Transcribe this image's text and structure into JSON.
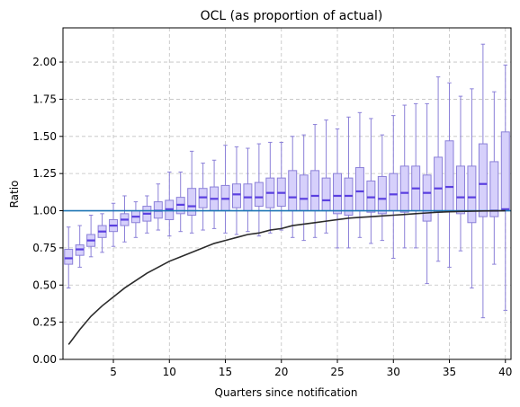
{
  "chart_data": {
    "type": "box",
    "title": "OCL (as proportion of actual)",
    "xlabel": "Quarters since notification",
    "ylabel": "Ratio",
    "xlim": [
      0.5,
      40.5
    ],
    "ylim": [
      0.0,
      2.23
    ],
    "xticks": [
      5,
      10,
      15,
      20,
      25,
      30,
      35,
      40
    ],
    "xtick_labels": [
      "5",
      "10",
      "15",
      "20",
      "25",
      "30",
      "35",
      "40"
    ],
    "yticks": [
      0.0,
      0.25,
      0.5,
      0.75,
      1.0,
      1.25,
      1.5,
      1.75,
      2.0
    ],
    "ytick_labels": [
      "0.00",
      "0.25",
      "0.50",
      "0.75",
      "1.00",
      "1.25",
      "1.50",
      "1.75",
      "2.00"
    ],
    "grid": true,
    "colors": {
      "box_fill": "#d6d0fb",
      "box_edge": "#8b80d8",
      "median": "#5a3fe0",
      "whisker": "#8b80d8",
      "reference_line": "#1f77b4",
      "curve": "#2b2b2b",
      "grid": "#c0c0c0"
    },
    "reference_line": {
      "y": 1.0
    },
    "boxes": [
      {
        "x": 1,
        "whislo": 0.48,
        "q1": 0.64,
        "med": 0.68,
        "q3": 0.74,
        "whishi": 0.89
      },
      {
        "x": 2,
        "whislo": 0.62,
        "q1": 0.7,
        "med": 0.74,
        "q3": 0.77,
        "whishi": 0.9
      },
      {
        "x": 3,
        "whislo": 0.69,
        "q1": 0.76,
        "med": 0.8,
        "q3": 0.84,
        "whishi": 0.97
      },
      {
        "x": 4,
        "whislo": 0.72,
        "q1": 0.82,
        "med": 0.86,
        "q3": 0.9,
        "whishi": 0.98
      },
      {
        "x": 5,
        "whislo": 0.76,
        "q1": 0.86,
        "med": 0.9,
        "q3": 0.94,
        "whishi": 1.05
      },
      {
        "x": 6,
        "whislo": 0.79,
        "q1": 0.9,
        "med": 0.94,
        "q3": 0.98,
        "whishi": 1.1
      },
      {
        "x": 7,
        "whislo": 0.82,
        "q1": 0.92,
        "med": 0.96,
        "q3": 1.0,
        "whishi": 1.06
      },
      {
        "x": 8,
        "whislo": 0.85,
        "q1": 0.93,
        "med": 0.98,
        "q3": 1.03,
        "whishi": 1.1
      },
      {
        "x": 9,
        "whislo": 0.87,
        "q1": 0.95,
        "med": 1.0,
        "q3": 1.06,
        "whishi": 1.18
      },
      {
        "x": 10,
        "whislo": 0.83,
        "q1": 0.94,
        "med": 1.01,
        "q3": 1.07,
        "whishi": 1.26
      },
      {
        "x": 11,
        "whislo": 0.86,
        "q1": 0.98,
        "med": 1.04,
        "q3": 1.09,
        "whishi": 1.26
      },
      {
        "x": 12,
        "whislo": 0.85,
        "q1": 0.97,
        "med": 1.03,
        "q3": 1.15,
        "whishi": 1.4
      },
      {
        "x": 13,
        "whislo": 0.87,
        "q1": 1.02,
        "med": 1.09,
        "q3": 1.15,
        "whishi": 1.32
      },
      {
        "x": 14,
        "whislo": 0.88,
        "q1": 1.0,
        "med": 1.08,
        "q3": 1.16,
        "whishi": 1.34
      },
      {
        "x": 15,
        "whislo": 0.85,
        "q1": 1.0,
        "med": 1.08,
        "q3": 1.17,
        "whishi": 1.44
      },
      {
        "x": 16,
        "whislo": 0.84,
        "q1": 1.02,
        "med": 1.11,
        "q3": 1.18,
        "whishi": 1.43
      },
      {
        "x": 17,
        "whislo": 0.86,
        "q1": 1.0,
        "med": 1.09,
        "q3": 1.18,
        "whishi": 1.42
      },
      {
        "x": 18,
        "whislo": 0.83,
        "q1": 1.03,
        "med": 1.09,
        "q3": 1.19,
        "whishi": 1.45
      },
      {
        "x": 19,
        "whislo": 0.85,
        "q1": 1.02,
        "med": 1.12,
        "q3": 1.22,
        "whishi": 1.46
      },
      {
        "x": 20,
        "whislo": 0.87,
        "q1": 1.03,
        "med": 1.12,
        "q3": 1.22,
        "whishi": 1.46
      },
      {
        "x": 21,
        "whislo": 0.82,
        "q1": 1.0,
        "med": 1.09,
        "q3": 1.27,
        "whishi": 1.5
      },
      {
        "x": 22,
        "whislo": 0.8,
        "q1": 1.0,
        "med": 1.08,
        "q3": 1.24,
        "whishi": 1.51
      },
      {
        "x": 23,
        "whislo": 0.82,
        "q1": 1.0,
        "med": 1.1,
        "q3": 1.27,
        "whishi": 1.58
      },
      {
        "x": 24,
        "whislo": 0.85,
        "q1": 1.0,
        "med": 1.07,
        "q3": 1.22,
        "whishi": 1.61
      },
      {
        "x": 25,
        "whislo": 0.75,
        "q1": 0.98,
        "med": 1.1,
        "q3": 1.25,
        "whishi": 1.55
      },
      {
        "x": 26,
        "whislo": 0.75,
        "q1": 0.97,
        "med": 1.1,
        "q3": 1.22,
        "whishi": 1.63
      },
      {
        "x": 27,
        "whislo": 0.82,
        "q1": 1.0,
        "med": 1.13,
        "q3": 1.29,
        "whishi": 1.66
      },
      {
        "x": 28,
        "whislo": 0.78,
        "q1": 0.99,
        "med": 1.09,
        "q3": 1.2,
        "whishi": 1.62
      },
      {
        "x": 29,
        "whislo": 0.8,
        "q1": 0.98,
        "med": 1.08,
        "q3": 1.23,
        "whishi": 1.51
      },
      {
        "x": 30,
        "whislo": 0.68,
        "q1": 1.0,
        "med": 1.11,
        "q3": 1.25,
        "whishi": 1.64
      },
      {
        "x": 31,
        "whislo": 0.75,
        "q1": 0.99,
        "med": 1.12,
        "q3": 1.3,
        "whishi": 1.71
      },
      {
        "x": 32,
        "whislo": 0.75,
        "q1": 1.0,
        "med": 1.15,
        "q3": 1.3,
        "whishi": 1.72
      },
      {
        "x": 33,
        "whislo": 0.51,
        "q1": 0.93,
        "med": 1.12,
        "q3": 1.24,
        "whishi": 1.72
      },
      {
        "x": 34,
        "whislo": 0.66,
        "q1": 0.99,
        "med": 1.15,
        "q3": 1.36,
        "whishi": 1.9
      },
      {
        "x": 35,
        "whislo": 0.62,
        "q1": 1.0,
        "med": 1.16,
        "q3": 1.47,
        "whishi": 1.86
      },
      {
        "x": 36,
        "whislo": 0.73,
        "q1": 0.98,
        "med": 1.09,
        "q3": 1.3,
        "whishi": 1.77
      },
      {
        "x": 37,
        "whislo": 0.48,
        "q1": 0.92,
        "med": 1.09,
        "q3": 1.3,
        "whishi": 1.82
      },
      {
        "x": 38,
        "whislo": 0.28,
        "q1": 0.96,
        "med": 1.18,
        "q3": 1.45,
        "whishi": 2.12
      },
      {
        "x": 39,
        "whislo": 0.64,
        "q1": 0.96,
        "med": 1.0,
        "q3": 1.33,
        "whishi": 1.8
      },
      {
        "x": 40,
        "whislo": 0.33,
        "q1": 1.0,
        "med": 1.01,
        "q3": 1.53,
        "whishi": 1.98
      }
    ],
    "curve": {
      "x": [
        1,
        2,
        3,
        4,
        5,
        6,
        7,
        8,
        9,
        10,
        11,
        12,
        13,
        14,
        15,
        16,
        17,
        18,
        19,
        20,
        21,
        22,
        23,
        24,
        25,
        26,
        27,
        28,
        29,
        30,
        31,
        32,
        33,
        34,
        35,
        36,
        37,
        38,
        39,
        40
      ],
      "y": [
        0.1,
        0.2,
        0.29,
        0.36,
        0.42,
        0.48,
        0.53,
        0.58,
        0.62,
        0.66,
        0.69,
        0.72,
        0.75,
        0.78,
        0.8,
        0.82,
        0.84,
        0.85,
        0.87,
        0.88,
        0.9,
        0.91,
        0.92,
        0.93,
        0.94,
        0.95,
        0.955,
        0.96,
        0.965,
        0.97,
        0.975,
        0.98,
        0.985,
        0.99,
        0.993,
        0.995,
        0.997,
        0.998,
        0.999,
        1.0
      ]
    }
  }
}
